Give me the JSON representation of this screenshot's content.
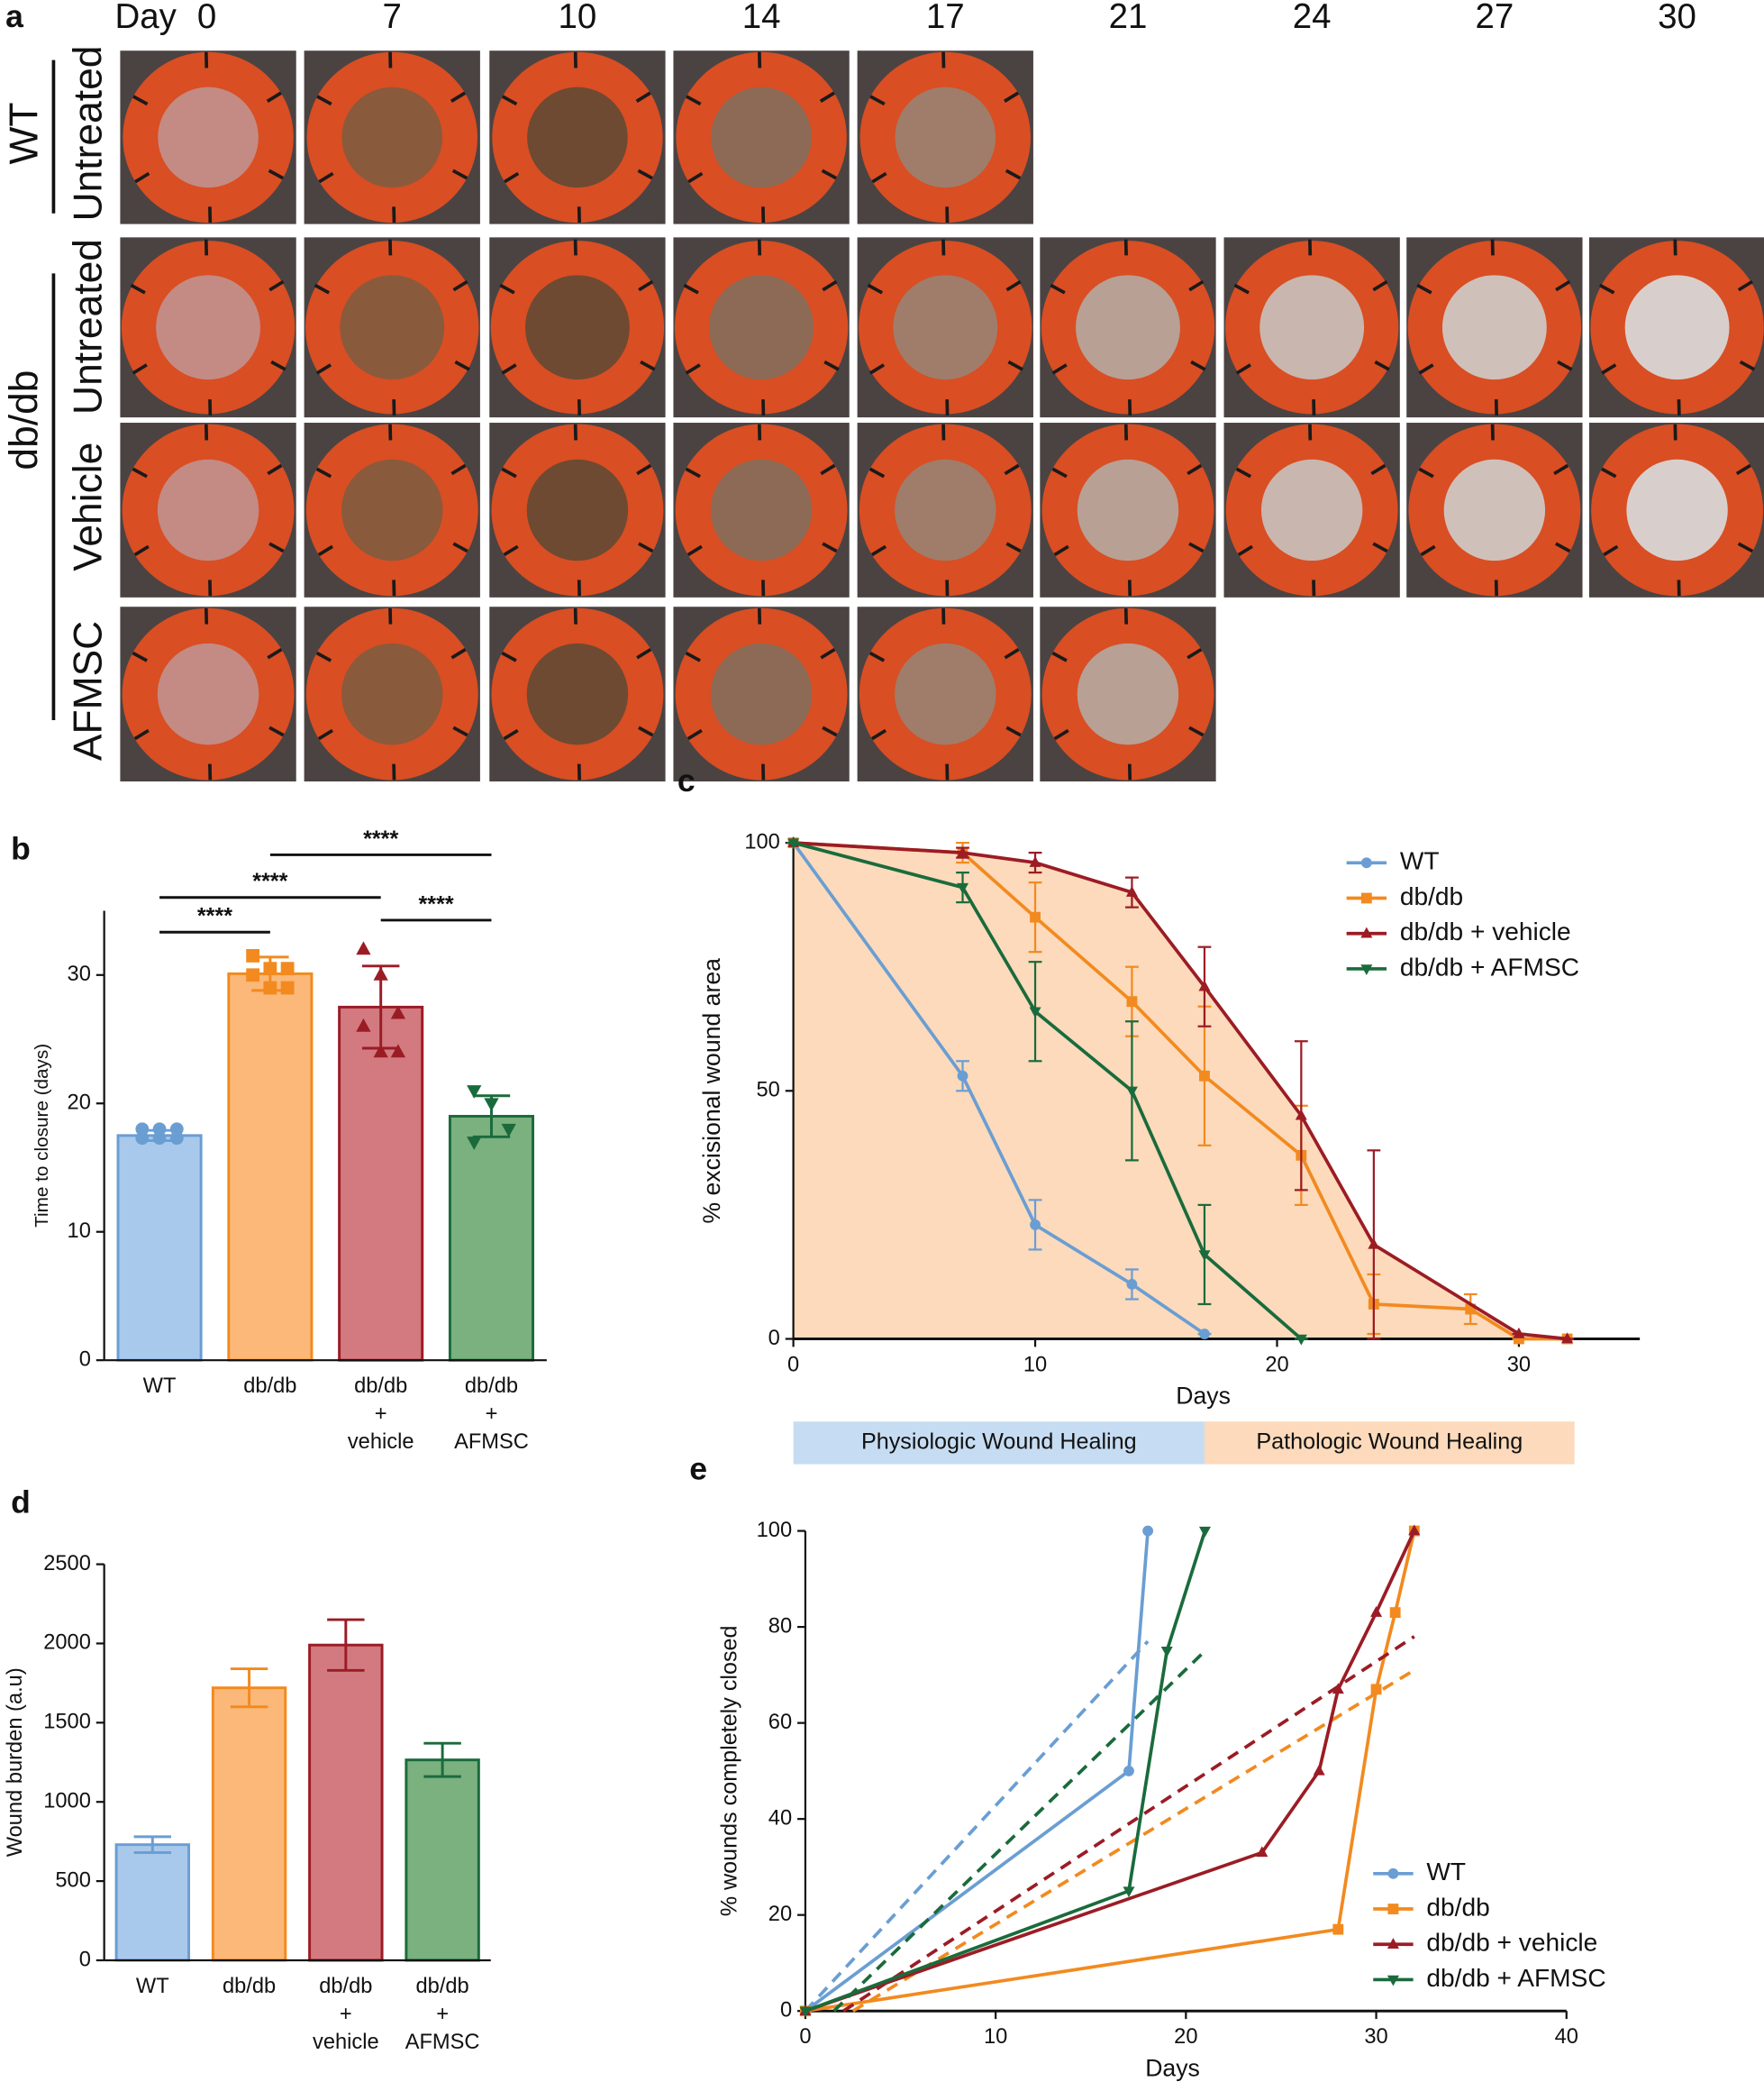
{
  "panel_a": {
    "label": "a",
    "day_label": "Day",
    "days": [
      0,
      7,
      10,
      14,
      17,
      21,
      24,
      27,
      30
    ],
    "groups": [
      {
        "name": "WT",
        "rows": [
          "Untreated"
        ]
      },
      {
        "name": "db/db",
        "rows": [
          "Untreated",
          "Vehicle",
          "AFMSC"
        ]
      }
    ]
  },
  "chart_data": [
    {
      "type": "bar",
      "panel": "b",
      "ylabel": "Time to closure (days)",
      "categories": [
        [
          "WT"
        ],
        [
          "db/db"
        ],
        [
          "db/db",
          "+",
          "vehicle"
        ],
        [
          "db/db",
          "+",
          "AFMSC"
        ]
      ],
      "values": [
        17.5,
        30.1,
        27.5,
        19.0
      ],
      "errors": [
        0.4,
        1.3,
        3.2,
        1.6
      ],
      "points": [
        [
          17.3,
          17.3,
          17.3,
          18.0,
          18.0,
          18.0
        ],
        [
          31.5,
          30.5,
          30.5,
          30.0,
          29.0,
          29.0
        ],
        [
          32.0,
          30.0,
          27.0,
          26.0,
          24.0,
          24.0
        ],
        [
          21.0,
          20.0,
          18.0,
          17.0
        ]
      ],
      "markers": [
        "circle",
        "square",
        "triangle-up",
        "triangle-down"
      ],
      "colors": [
        "#a9c9ec",
        "#fbb878",
        "#d27a80",
        "#7bb07f"
      ],
      "edge_colors": [
        "#6a9ed3",
        "#f28a1f",
        "#9b1c25",
        "#1a6b3c"
      ],
      "ylim": [
        0,
        35
      ],
      "yticks": [
        0,
        10,
        20,
        30
      ],
      "significance": [
        {
          "label": "****",
          "groups": [
            0,
            1
          ]
        },
        {
          "label": "****",
          "groups": [
            0,
            2
          ]
        },
        {
          "label": "****",
          "groups": [
            1,
            3
          ]
        },
        {
          "label": "****",
          "groups": [
            2,
            3
          ]
        }
      ]
    },
    {
      "type": "line",
      "panel": "c",
      "xlabel": "Days",
      "ylabel": "% excisional wound area",
      "xlim": [
        0,
        35
      ],
      "xticks": [
        0,
        10,
        20,
        30
      ],
      "ylim": [
        0,
        100
      ],
      "yticks": [
        0,
        50,
        100
      ],
      "legend": "upper right",
      "series": [
        {
          "name": "WT",
          "color": "#6a9ed3",
          "marker": "circle",
          "area_color": "#c6dcf2",
          "x": [
            0,
            7,
            10,
            14,
            17
          ],
          "values": [
            100,
            53,
            23,
            11,
            1
          ],
          "errors": [
            0,
            3,
            5,
            3,
            0
          ]
        },
        {
          "name": "db/db",
          "color": "#f28a1f",
          "marker": "square",
          "x": [
            0,
            7,
            10,
            14,
            17,
            21,
            24,
            28,
            30,
            32
          ],
          "values": [
            100,
            98,
            85,
            68,
            53,
            37,
            7,
            6,
            0,
            0
          ],
          "errors": [
            0,
            2,
            7,
            7,
            14,
            10,
            6,
            3,
            0,
            0
          ]
        },
        {
          "name": "db/db + vehicle",
          "color": "#9b1c25",
          "marker": "triangle-up",
          "area_color": "#fcdabb",
          "x": [
            0,
            7,
            10,
            14,
            17,
            21,
            24,
            30,
            32
          ],
          "values": [
            100,
            98,
            96,
            90,
            71,
            45,
            19,
            1,
            0
          ],
          "errors": [
            0,
            1,
            2,
            3,
            8,
            15,
            19,
            0,
            0
          ]
        },
        {
          "name": "db/db + AFMSC",
          "color": "#1a6b3c",
          "marker": "triangle-down",
          "x": [
            0,
            7,
            10,
            14,
            17,
            21
          ],
          "values": [
            100,
            91,
            66,
            50,
            17,
            0
          ],
          "errors": [
            0,
            3,
            10,
            14,
            10,
            0
          ]
        }
      ],
      "phases": [
        {
          "label": "Physiologic Wound Healing",
          "from": 0,
          "to": 17,
          "color": "#c6dcf2"
        },
        {
          "label": "Pathologic Wound Healing",
          "from": 17,
          "to": 32.3,
          "color": "#fcdabb"
        }
      ]
    },
    {
      "type": "bar",
      "panel": "d",
      "ylabel": "Wound burden (a.u)",
      "categories": [
        [
          "WT"
        ],
        [
          "db/db"
        ],
        [
          "db/db",
          "+",
          "vehicle"
        ],
        [
          "db/db",
          "+",
          "AFMSC"
        ]
      ],
      "values": [
        730,
        1720,
        1990,
        1265
      ],
      "errors": [
        50,
        120,
        160,
        105
      ],
      "colors": [
        "#a9c9ec",
        "#fbb878",
        "#d27a80",
        "#7bb07f"
      ],
      "edge_colors": [
        "#6a9ed3",
        "#f28a1f",
        "#9b1c25",
        "#1a6b3c"
      ],
      "ylim": [
        0,
        2500
      ],
      "yticks": [
        0,
        500,
        1000,
        1500,
        2000,
        2500
      ]
    },
    {
      "type": "line",
      "panel": "e",
      "xlabel": "Days",
      "ylabel": "% wounds completely closed",
      "xlim": [
        0,
        40
      ],
      "xticks": [
        0,
        10,
        20,
        30,
        40
      ],
      "ylim": [
        0,
        100
      ],
      "yticks": [
        0,
        20,
        40,
        60,
        80,
        100
      ],
      "legend": "lower right",
      "series": [
        {
          "name": "WT",
          "color": "#6a9ed3",
          "marker": "circle",
          "x": [
            0,
            17,
            18
          ],
          "values": [
            0,
            50,
            100
          ],
          "trend": {
            "x": [
              0,
              18
            ],
            "y": [
              0,
              77
            ]
          }
        },
        {
          "name": "db/db",
          "color": "#f28a1f",
          "marker": "square",
          "x": [
            0,
            28,
            30,
            31,
            32
          ],
          "values": [
            0,
            17,
            67,
            83,
            100
          ],
          "trend": {
            "x": [
              2.5,
              32
            ],
            "y": [
              0,
              71
            ]
          }
        },
        {
          "name": "db/db + vehicle",
          "color": "#9b1c25",
          "marker": "triangle-up",
          "x": [
            0,
            24,
            27,
            28,
            30,
            32
          ],
          "values": [
            0,
            33,
            50,
            67,
            83,
            100
          ],
          "trend": {
            "x": [
              2,
              32
            ],
            "y": [
              0,
              78
            ]
          }
        },
        {
          "name": "db/db + AFMSC",
          "color": "#1a6b3c",
          "marker": "triangle-down",
          "x": [
            0,
            17,
            19,
            21
          ],
          "values": [
            0,
            25,
            75,
            100
          ],
          "trend": {
            "x": [
              1.5,
              21
            ],
            "y": [
              0,
              75
            ]
          }
        }
      ]
    }
  ]
}
